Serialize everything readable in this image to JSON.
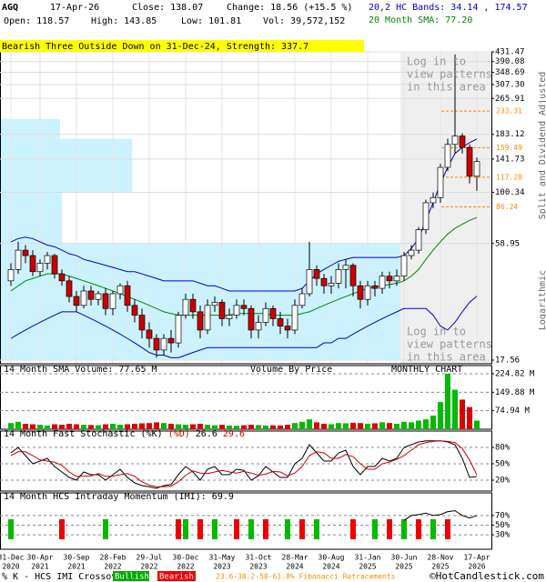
{
  "header": {
    "symbol": "AGQ",
    "date": "17-Apr-26",
    "close": "Close: 138.07",
    "change": "Change: 18.56 (+15.5 %)",
    "open": "Open: 118.57",
    "high": "High: 143.85",
    "low": "Low: 101.81",
    "vol": "Vol: 39,572,152",
    "bands": "20,2 HC Bands: 34.14 , 174.57",
    "sma": "20 Month SMA: 77.20"
  },
  "chart_data": [
    {
      "type": "candlestick",
      "title": "Bearish Three Outside Down on 31-Dec-24, Strength: 337.7",
      "annotations": [
        [
          "Log in to",
          "view patterns",
          "in this area"
        ],
        [
          "Log in to",
          "view patterns",
          "in this area"
        ]
      ],
      "right_labels": [
        "Split and Dividend Adjusted",
        "Logarithmic"
      ],
      "categories": [
        [
          "31-Dec",
          "2020"
        ],
        null,
        null,
        null,
        [
          "30-Apr",
          "2021"
        ],
        null,
        null,
        null,
        null,
        [
          "30-Sep",
          "2021"
        ],
        null,
        null,
        null,
        null,
        [
          "28-Feb",
          "2022"
        ],
        null,
        null,
        null,
        null,
        [
          "29-Jul",
          "2022"
        ],
        null,
        null,
        null,
        null,
        [
          "30-Dec",
          "2022"
        ],
        null,
        null,
        null,
        null,
        [
          "31-May",
          "2023"
        ],
        null,
        null,
        null,
        null,
        [
          "31-Oct",
          "2023"
        ],
        null,
        null,
        null,
        null,
        [
          "28-Mar",
          "2024"
        ],
        null,
        null,
        null,
        null,
        [
          "30-Aug",
          "2024"
        ],
        null,
        null,
        null,
        null,
        [
          "31-Jan",
          "2025"
        ],
        null,
        null,
        null,
        null,
        [
          "30-Jun",
          "2025"
        ],
        null,
        null,
        null,
        null,
        [
          "28-Nov",
          "2025"
        ],
        null,
        null,
        null,
        null,
        [
          "17-Apr",
          "2026"
        ]
      ],
      "open": [
        40,
        45,
        55,
        52,
        44,
        48,
        52,
        43,
        40,
        34,
        31,
        36,
        33,
        35,
        30,
        35,
        38,
        31,
        28,
        24,
        22,
        19.5,
        22,
        21,
        28,
        33,
        29,
        24,
        31,
        32,
        27,
        28,
        31,
        30,
        24,
        26,
        30,
        27,
        25,
        24,
        31,
        35,
        45,
        41,
        38,
        39,
        45,
        47,
        38,
        33,
        38,
        37,
        42,
        40,
        42,
        52,
        55,
        68,
        90,
        95,
        130,
        165,
        180,
        160,
        118.57
      ],
      "high": [
        48,
        60,
        58,
        55,
        50,
        54,
        53,
        45,
        42,
        36,
        38,
        38,
        36,
        37,
        36,
        39,
        40,
        33,
        30,
        26,
        23,
        23,
        24,
        29,
        35,
        35,
        31,
        33,
        34,
        33,
        30,
        33,
        33,
        31,
        28,
        32,
        31,
        29,
        27,
        33,
        37,
        60,
        47,
        43,
        42,
        48,
        50,
        48,
        40,
        40,
        40,
        44,
        44,
        45,
        54,
        58,
        70,
        93,
        100,
        135,
        175,
        420,
        185,
        165,
        143.85
      ],
      "low": [
        38,
        43,
        48,
        42,
        42,
        45,
        41,
        38,
        32,
        29,
        30,
        31,
        31,
        28,
        28,
        33,
        29,
        26,
        22,
        20,
        18,
        18.5,
        19,
        20,
        27,
        27,
        22,
        23,
        29,
        25,
        25,
        27,
        28,
        22,
        22,
        25,
        25,
        23,
        22,
        23,
        30,
        34,
        38,
        35,
        35,
        37,
        37,
        34,
        30,
        31,
        34,
        35,
        37,
        38,
        40,
        50,
        53,
        65,
        85,
        90,
        125,
        150,
        150,
        110,
        101.81
      ],
      "close": [
        45,
        55,
        52,
        44,
        48,
        52,
        43,
        40,
        34,
        31,
        36,
        33,
        35,
        30,
        35,
        38,
        31,
        28,
        24,
        22,
        19.5,
        22,
        21,
        28,
        33,
        29,
        24,
        31,
        32,
        27,
        28,
        31,
        30,
        24,
        26,
        30,
        27,
        25,
        24,
        31,
        35,
        45,
        41,
        38,
        39,
        45,
        47,
        38,
        33,
        38,
        37,
        42,
        40,
        42,
        52,
        55,
        68,
        90,
        95,
        130,
        165,
        180,
        160,
        118.57,
        138.07
      ],
      "up_color": "#ffffff",
      "down_color": "#cc0000",
      "lines": [
        {
          "color": "#0000cc",
          "values": [
            60,
            62,
            63,
            62,
            60,
            58,
            57,
            55,
            53,
            52,
            50,
            49,
            48,
            47,
            46,
            45,
            44,
            44,
            43,
            42,
            41,
            40,
            40,
            40,
            40,
            40,
            39,
            38,
            38,
            37,
            36,
            36,
            36,
            36,
            36,
            36,
            36,
            36,
            36,
            36,
            37,
            40,
            43,
            45,
            47,
            49,
            50,
            51,
            51,
            51,
            51,
            51,
            51,
            51,
            52,
            56,
            62,
            75,
            90,
            110,
            130,
            150,
            160,
            168,
            174.57
          ]
        },
        {
          "color": "#0000cc",
          "values": [
            22,
            23,
            24,
            25,
            26,
            27,
            28,
            29,
            29,
            29,
            28,
            27,
            26,
            25,
            24,
            23,
            22,
            21,
            20,
            19,
            18.5,
            18.5,
            18,
            18,
            18.5,
            19,
            19.5,
            20,
            20,
            20,
            20,
            20,
            20,
            20,
            20,
            20,
            20,
            20,
            20,
            20,
            20,
            20,
            20,
            21,
            21,
            22,
            22,
            23,
            24,
            25,
            26,
            27,
            28,
            29,
            30,
            30,
            30,
            30,
            28,
            25,
            24,
            26,
            29,
            32,
            34.14
          ]
        },
        {
          "color": "#008800",
          "values": [
            36,
            38,
            40,
            41,
            42,
            43,
            43,
            43,
            42,
            41,
            40,
            39,
            38,
            37,
            36,
            35,
            34,
            33,
            32,
            31,
            30,
            29,
            28.5,
            28,
            28,
            28,
            28,
            28,
            28,
            28,
            28,
            28.5,
            28.5,
            28.5,
            28.5,
            28.5,
            28,
            28,
            28,
            28,
            28.5,
            29,
            30,
            31,
            32,
            33,
            34,
            35,
            36,
            37,
            37.5,
            38,
            38.5,
            39,
            40,
            42,
            45,
            50,
            55,
            60,
            65,
            69,
            72,
            75,
            77.2
          ]
        }
      ],
      "fib": {
        "color": "#ff8800",
        "levels": [
          233.31,
          159.49,
          117.28,
          86.24
        ]
      },
      "volume_by_price": {
        "label": "Volume By Price",
        "color": "#ccf2ff",
        "bins": [
          17.56,
          58.95,
          100.34,
          174.8,
          215
        ],
        "values": [
          100,
          15.5,
          33,
          15
        ]
      },
      "log": true,
      "ylim": [
        17.56,
        431.47
      ],
      "yticks": [
        431.47,
        390.08,
        348.69,
        {
          "value": 307.3,
          "label": "307.30"
        },
        265.91,
        183.12,
        141.73,
        100.34,
        58.95,
        17.56
      ],
      "grid": true
    },
    {
      "type": "bar",
      "title": "14 Month SMA Volume: 77.65 M",
      "label": "MONTHLY CHART",
      "up_color": "#00bb00",
      "down_color": "#dd0000",
      "values": [
        25,
        30,
        22,
        20,
        18,
        15,
        20,
        18,
        22,
        20,
        18,
        17,
        16,
        20,
        22,
        18,
        20,
        22,
        24,
        25,
        28,
        25,
        22,
        20,
        18,
        20,
        22,
        18,
        16,
        18,
        15,
        14,
        16,
        18,
        17,
        15,
        16,
        15,
        18,
        25,
        30,
        40,
        28,
        22,
        20,
        25,
        24,
        26,
        25,
        22,
        24,
        28,
        25,
        22,
        30,
        28,
        35,
        40,
        55,
        110,
        224.82,
        160,
        120,
        90,
        35
      ],
      "ylim": [
        0,
        224.82
      ],
      "yticks": [
        {
          "value": 224.82,
          "label": "224.82 M"
        },
        {
          "value": 149.88,
          "label": "149.88 M"
        },
        {
          "value": 74.94,
          "label": "74.94 M"
        }
      ]
    },
    {
      "type": "line",
      "title": "14 Month Fast Stochastic",
      "series": [
        {
          "name": "(%K)",
          "color": "#000000",
          "values": [
            70,
            80,
            65,
            50,
            55,
            60,
            45,
            35,
            25,
            20,
            35,
            30,
            30,
            20,
            30,
            40,
            25,
            15,
            10,
            8,
            5,
            10,
            12,
            30,
            45,
            35,
            20,
            40,
            45,
            30,
            30,
            40,
            38,
            20,
            28,
            45,
            35,
            25,
            25,
            50,
            60,
            85,
            70,
            55,
            55,
            70,
            75,
            45,
            30,
            45,
            45,
            60,
            55,
            60,
            80,
            85,
            90,
            92,
            92,
            92,
            90,
            85,
            60,
            25,
            26.6
          ]
        },
        {
          "name": "(%D)",
          "color": "#cc0000",
          "values": [
            65,
            72,
            72,
            65,
            57,
            55,
            53,
            47,
            35,
            27,
            27,
            28,
            32,
            27,
            27,
            30,
            32,
            27,
            17,
            11,
            8,
            8,
            9,
            17,
            29,
            37,
            33,
            32,
            35,
            38,
            35,
            33,
            36,
            33,
            29,
            31,
            36,
            35,
            28,
            33,
            45,
            65,
            72,
            70,
            60,
            60,
            67,
            63,
            50,
            40,
            40,
            50,
            53,
            58,
            65,
            75,
            85,
            89,
            91,
            92,
            91,
            89,
            78,
            57,
            29.6
          ]
        }
      ],
      "ylim": [
        0,
        100
      ],
      "yticks": [
        {
          "value": 80,
          "label": "80%"
        },
        {
          "value": 50,
          "label": "50%"
        },
        {
          "value": 20,
          "label": "20%"
        }
      ]
    },
    {
      "type": "momentum",
      "title": "14 Month HCS Intraday Momentum (IMI):",
      "color": "#000000",
      "values": [
        null,
        null,
        null,
        null,
        null,
        null,
        null,
        null,
        null,
        null,
        null,
        null,
        null,
        null,
        null,
        null,
        null,
        null,
        null,
        null,
        null,
        null,
        null,
        null,
        null,
        null,
        null,
        null,
        null,
        null,
        null,
        null,
        null,
        null,
        null,
        null,
        null,
        null,
        null,
        null,
        null,
        null,
        null,
        null,
        null,
        null,
        null,
        null,
        null,
        null,
        null,
        null,
        null,
        null,
        60,
        70,
        72,
        75,
        70,
        72,
        78,
        80,
        70,
        65,
        69.9
      ],
      "bullish": [
        0,
        13,
        24,
        28,
        33,
        38,
        42,
        50,
        54,
        58
      ],
      "bearish": [
        7,
        23,
        26,
        31,
        35,
        40,
        47,
        52,
        56,
        60
      ],
      "bull_color": "#00bb00",
      "bear_color": "#ee0000",
      "ylim": [
        0,
        100
      ],
      "yticks": [
        {
          "value": 70,
          "label": "70%"
        },
        {
          "value": 50,
          "label": "50%"
        },
        {
          "value": 30,
          "label": "30%"
        }
      ]
    }
  ],
  "footer": {
    "crossover": "% K - HCS IMI Crossover,",
    "bullish": "Bullish",
    "bearish": "Bearish",
    "fib": "23.6-38.2-50-61.8% Fibonacci Retracements",
    "credit": "©HotCandlestick.com"
  }
}
